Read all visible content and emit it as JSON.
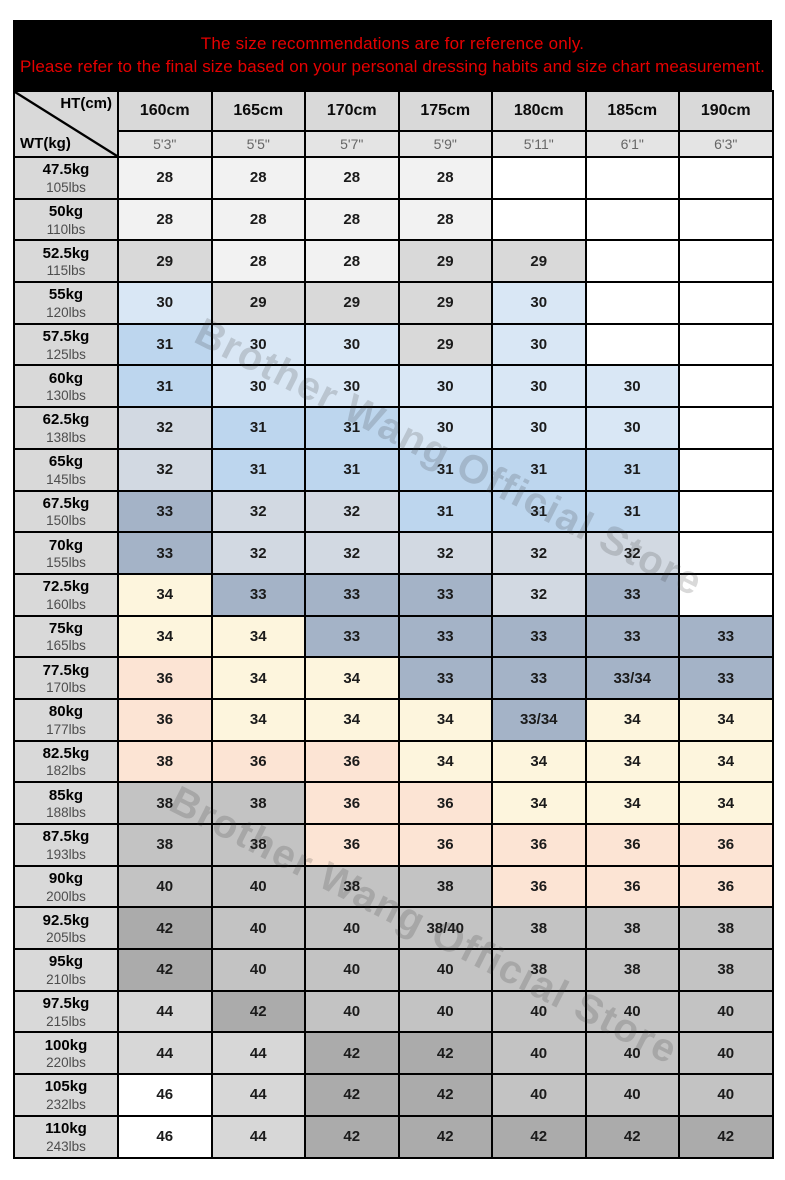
{
  "banner": {
    "line1": "The size recommendations are for reference only.",
    "line2": "Please refer to the final size based on your personal dressing habits and size chart measurement.",
    "bg_color": "#000000",
    "text_color": "#e60000"
  },
  "watermark": {
    "text": "Brother Wang Official Store"
  },
  "palette": {
    "w": "#f2f2f2",
    "g": "#d9d9d9",
    "lb": "#d9e7f5",
    "mb": "#bdd6ee",
    "bg": "#d2d9e2",
    "sl": "#a4b3c7",
    "cr": "#fdf5dd",
    "pe": "#fce4d4",
    "mg": "#c3c3c3",
    "dg": "#ababab",
    "lg": "#d7d7d7",
    "wh": "#ffffff"
  },
  "chart_data": {
    "type": "table",
    "title": "The size recommendations are for reference only.",
    "subtitle": "Please refer to the final size based on your personal dressing habits and size chart measurement.",
    "corner": {
      "top": "HT(cm)",
      "bottom": "WT(kg)"
    },
    "height_cm": [
      "160cm",
      "165cm",
      "170cm",
      "175cm",
      "180cm",
      "185cm",
      "190cm"
    ],
    "height_ft": [
      "5'3\"",
      "5'5\"",
      "5'7\"",
      "5'9\"",
      "5'11\"",
      "6'1\"",
      "6'3\""
    ],
    "rows": [
      {
        "kg": "47.5kg",
        "lbs": "105lbs",
        "sizes": [
          "28",
          "28",
          "28",
          "28",
          "",
          "",
          ""
        ],
        "colors": [
          "w",
          "w",
          "w",
          "w",
          "wh",
          "wh",
          "wh"
        ]
      },
      {
        "kg": "50kg",
        "lbs": "110lbs",
        "sizes": [
          "28",
          "28",
          "28",
          "28",
          "",
          "",
          ""
        ],
        "colors": [
          "w",
          "w",
          "w",
          "w",
          "wh",
          "wh",
          "wh"
        ]
      },
      {
        "kg": "52.5kg",
        "lbs": "115lbs",
        "sizes": [
          "29",
          "28",
          "28",
          "29",
          "29",
          "",
          ""
        ],
        "colors": [
          "g",
          "w",
          "w",
          "g",
          "g",
          "wh",
          "wh"
        ]
      },
      {
        "kg": "55kg",
        "lbs": "120lbs",
        "sizes": [
          "30",
          "29",
          "29",
          "29",
          "30",
          "",
          ""
        ],
        "colors": [
          "lb",
          "g",
          "g",
          "g",
          "lb",
          "wh",
          "wh"
        ]
      },
      {
        "kg": "57.5kg",
        "lbs": "125lbs",
        "sizes": [
          "31",
          "30",
          "30",
          "29",
          "30",
          "",
          ""
        ],
        "colors": [
          "mb",
          "lb",
          "lb",
          "g",
          "lb",
          "wh",
          "wh"
        ]
      },
      {
        "kg": "60kg",
        "lbs": "130lbs",
        "sizes": [
          "31",
          "30",
          "30",
          "30",
          "30",
          "30",
          ""
        ],
        "colors": [
          "mb",
          "lb",
          "lb",
          "lb",
          "lb",
          "lb",
          "wh"
        ]
      },
      {
        "kg": "62.5kg",
        "lbs": "138lbs",
        "sizes": [
          "32",
          "31",
          "31",
          "30",
          "30",
          "30",
          ""
        ],
        "colors": [
          "bg",
          "mb",
          "mb",
          "lb",
          "lb",
          "lb",
          "wh"
        ]
      },
      {
        "kg": "65kg",
        "lbs": "145lbs",
        "sizes": [
          "32",
          "31",
          "31",
          "31",
          "31",
          "31",
          ""
        ],
        "colors": [
          "bg",
          "mb",
          "mb",
          "mb",
          "mb",
          "mb",
          "wh"
        ]
      },
      {
        "kg": "67.5kg",
        "lbs": "150lbs",
        "sizes": [
          "33",
          "32",
          "32",
          "31",
          "31",
          "31",
          ""
        ],
        "colors": [
          "sl",
          "bg",
          "bg",
          "mb",
          "mb",
          "mb",
          "wh"
        ]
      },
      {
        "kg": "70kg",
        "lbs": "155lbs",
        "sizes": [
          "33",
          "32",
          "32",
          "32",
          "32",
          "32",
          ""
        ],
        "colors": [
          "sl",
          "bg",
          "bg",
          "bg",
          "bg",
          "bg",
          "wh"
        ]
      },
      {
        "kg": "72.5kg",
        "lbs": "160lbs",
        "sizes": [
          "34",
          "33",
          "33",
          "33",
          "32",
          "33",
          ""
        ],
        "colors": [
          "cr",
          "sl",
          "sl",
          "sl",
          "bg",
          "sl",
          "wh"
        ]
      },
      {
        "kg": "75kg",
        "lbs": "165lbs",
        "sizes": [
          "34",
          "34",
          "33",
          "33",
          "33",
          "33",
          "33"
        ],
        "colors": [
          "cr",
          "cr",
          "sl",
          "sl",
          "sl",
          "sl",
          "sl"
        ]
      },
      {
        "kg": "77.5kg",
        "lbs": "170lbs",
        "sizes": [
          "36",
          "34",
          "34",
          "33",
          "33",
          "33/34",
          "33"
        ],
        "colors": [
          "pe",
          "cr",
          "cr",
          "sl",
          "sl",
          "sl",
          "sl"
        ]
      },
      {
        "kg": "80kg",
        "lbs": "177lbs",
        "sizes": [
          "36",
          "34",
          "34",
          "34",
          "33/34",
          "34",
          "34"
        ],
        "colors": [
          "pe",
          "cr",
          "cr",
          "cr",
          "sl",
          "cr",
          "cr"
        ]
      },
      {
        "kg": "82.5kg",
        "lbs": "182lbs",
        "sizes": [
          "38",
          "36",
          "36",
          "34",
          "34",
          "34",
          "34"
        ],
        "colors": [
          "pe",
          "pe",
          "pe",
          "cr",
          "cr",
          "cr",
          "cr"
        ]
      },
      {
        "kg": "85kg",
        "lbs": "188lbs",
        "sizes": [
          "38",
          "38",
          "36",
          "36",
          "34",
          "34",
          "34"
        ],
        "colors": [
          "mg",
          "mg",
          "pe",
          "pe",
          "cr",
          "cr",
          "cr"
        ]
      },
      {
        "kg": "87.5kg",
        "lbs": "193lbs",
        "sizes": [
          "38",
          "38",
          "36",
          "36",
          "36",
          "36",
          "36"
        ],
        "colors": [
          "mg",
          "mg",
          "pe",
          "pe",
          "pe",
          "pe",
          "pe"
        ]
      },
      {
        "kg": "90kg",
        "lbs": "200lbs",
        "sizes": [
          "40",
          "40",
          "38",
          "38",
          "36",
          "36",
          "36"
        ],
        "colors": [
          "mg",
          "mg",
          "mg",
          "mg",
          "pe",
          "pe",
          "pe"
        ]
      },
      {
        "kg": "92.5kg",
        "lbs": "205lbs",
        "sizes": [
          "42",
          "40",
          "40",
          "38/40",
          "38",
          "38",
          "38"
        ],
        "colors": [
          "dg",
          "mg",
          "mg",
          "mg",
          "mg",
          "mg",
          "mg"
        ]
      },
      {
        "kg": "95kg",
        "lbs": "210lbs",
        "sizes": [
          "42",
          "40",
          "40",
          "40",
          "38",
          "38",
          "38"
        ],
        "colors": [
          "dg",
          "mg",
          "mg",
          "mg",
          "mg",
          "mg",
          "mg"
        ]
      },
      {
        "kg": "97.5kg",
        "lbs": "215lbs",
        "sizes": [
          "44",
          "42",
          "40",
          "40",
          "40",
          "40",
          "40"
        ],
        "colors": [
          "lg",
          "dg",
          "mg",
          "mg",
          "mg",
          "mg",
          "mg"
        ]
      },
      {
        "kg": "100kg",
        "lbs": "220lbs",
        "sizes": [
          "44",
          "44",
          "42",
          "42",
          "40",
          "40",
          "40"
        ],
        "colors": [
          "lg",
          "lg",
          "dg",
          "dg",
          "mg",
          "mg",
          "mg"
        ]
      },
      {
        "kg": "105kg",
        "lbs": "232lbs",
        "sizes": [
          "46",
          "44",
          "42",
          "42",
          "40",
          "40",
          "40"
        ],
        "colors": [
          "wh",
          "lg",
          "dg",
          "dg",
          "mg",
          "mg",
          "mg"
        ]
      },
      {
        "kg": "110kg",
        "lbs": "243lbs",
        "sizes": [
          "46",
          "44",
          "42",
          "42",
          "42",
          "42",
          "42"
        ],
        "colors": [
          "wh",
          "lg",
          "dg",
          "dg",
          "dg",
          "dg",
          "dg"
        ]
      }
    ]
  }
}
